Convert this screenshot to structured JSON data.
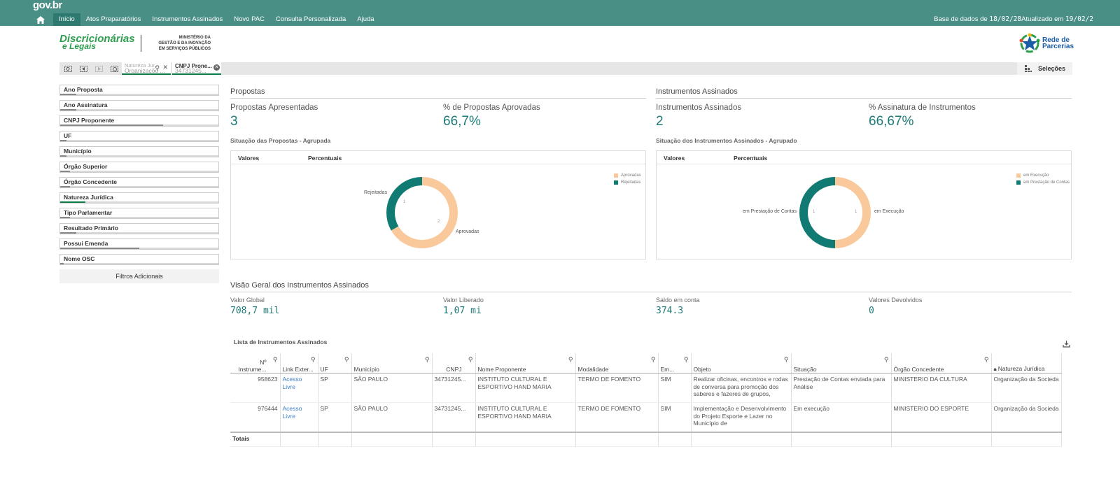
{
  "header": {
    "brand": "gov.br",
    "nav": [
      {
        "label": "Início",
        "active": true
      },
      {
        "label": "Atos Preparatórios"
      },
      {
        "label": "Instrumentos Assinados"
      },
      {
        "label": "Novo PAC"
      },
      {
        "label": "Consulta Personalizada"
      },
      {
        "label": "Ajuda"
      }
    ],
    "db_prefix": "Base de dados de ",
    "db_date": "18/02/28",
    "upd_prefix": "Atualizado em ",
    "upd_date": "19/02/2"
  },
  "logos": {
    "dl_line1": "Discricionárias",
    "dl_line2": "e Legais",
    "ministry_1": "MINISTÉRIO DA",
    "ministry_2": "GESTÃO E DA INOVAÇÃO",
    "ministry_3": "EM SERVIÇOS PÚBLICOS",
    "rede_1": "Rede de",
    "rede_2": "Parcerias"
  },
  "selection_bar": {
    "chip1_title": "Natureza Jur...",
    "chip1_value": "Organizaçõo ...",
    "chip2_title": "CNPJ Prone...",
    "chip2_value": "34731245...",
    "selections_label": "Seleções"
  },
  "filters": [
    {
      "label": "Ano Proposta",
      "fill": 0.1
    },
    {
      "label": "Ano Assinatura",
      "fill": 0.1
    },
    {
      "label": "CNPJ Proponente",
      "fill": 0.65
    },
    {
      "label": "UF",
      "fill": 0.04
    },
    {
      "label": "Município",
      "fill": 0.04
    },
    {
      "label": "Órgão Superior",
      "fill": 0.06
    },
    {
      "label": "Órgão Concedente",
      "fill": 0.06
    },
    {
      "label": "Natureza Jurídica",
      "fill": 0.16
    },
    {
      "label": "Tipo Parlamentar",
      "fill": 0.06
    },
    {
      "label": "Resultado Primário",
      "fill": 0.1
    },
    {
      "label": "Possui Emenda",
      "fill": 0.5
    },
    {
      "label": "Nome OSC",
      "fill": 0.02
    }
  ],
  "filters_more": "Filtros Adicionais",
  "propostas": {
    "section": "Propostas",
    "kpi1_title": "Propostas Apresentadas",
    "kpi1_value": "3",
    "kpi2_title": "% de Propostas Aprovadas",
    "kpi2_value": "66,7%",
    "chart_title": "Situação das Propostas - Agrupada",
    "tab1": "Valores",
    "tab2": "Percentuais",
    "legend": [
      "Aprovadas",
      "Rejeitadas"
    ],
    "label_a": "Aprovadas",
    "label_b": "Rejeitadas",
    "val_a": "2",
    "val_b": "1"
  },
  "instrumentos": {
    "section": "Instrumentos Assinados",
    "kpi1_title": "Instrumentos Assinados",
    "kpi1_value": "2",
    "kpi2_title": "% Assinatura de Instrumentos",
    "kpi2_value": "66,67%",
    "chart_title": "Situação dos Instrumentos Assinados - Agrupado",
    "tab1": "Valores",
    "tab2": "Percentuais",
    "legend": [
      "em Execução",
      "em Prestação de Contas"
    ],
    "label_a": "em Execução",
    "label_b": "em Prestação de Contas",
    "val_a": "1",
    "val_b": "1"
  },
  "chart_data": [
    {
      "type": "pie",
      "title": "Situação das Propostas - Agrupada",
      "categories": [
        "Aprovadas",
        "Rejeitadas"
      ],
      "values": [
        2,
        1
      ],
      "colors": [
        "#f9c99b",
        "#117a72"
      ],
      "legend": "top-right"
    },
    {
      "type": "pie",
      "title": "Situação dos Instrumentos Assinados - Agrupado",
      "categories": [
        "em Execução",
        "em Prestação de Contas"
      ],
      "values": [
        1,
        1
      ],
      "colors": [
        "#f9c99b",
        "#117a72"
      ],
      "legend": "top-right"
    }
  ],
  "overview": {
    "section": "Visão Geral dos Instrumentos Assinados",
    "items": [
      {
        "title": "Valor Global",
        "value": "708,7 mil"
      },
      {
        "title": "Valor Liberado",
        "value": "1,07 mi"
      },
      {
        "title": "Saldo em conta",
        "value": "374.3"
      },
      {
        "title": "Valores Devolvidos",
        "value": "0"
      }
    ]
  },
  "table": {
    "title": "Lista de Instrumentos Assinados",
    "headers": [
      "Nº Instrume...",
      "Link Exter...",
      "UF",
      "Município",
      "CNPJ",
      "Nome Proponente",
      "Modalidade",
      "Em...",
      "Objeto",
      "Situação",
      "Órgão Concedente",
      "Natureza Jurídica"
    ],
    "rows": [
      [
        "958623",
        "Acesso Livre",
        "SP",
        "SÃO PAULO",
        "34731245...",
        "INSTITUTO CULTURAL E ESPORTIVO HAND MARIA",
        "TERMO DE FOMENTO",
        "SIM",
        "Realizar oficinas, encontros e rodas de conversa para promoção dos saberes e fazeres de grupos,",
        "Prestação de Contas enviada para Análise",
        "MINISTERIO DA CULTURA",
        "Organização da Socieda"
      ],
      [
        "976444",
        "Acesso Livre",
        "SP",
        "SÃO PAULO",
        "34731245...",
        "INSTITUTO CULTURAL E ESPORTIVO HAND MARIA",
        "TERMO DE FOMENTO",
        "SIM",
        "Implementação e Desenvolvimento do Projeto Esporte e Lazer no Município de",
        "Em execução",
        "MINISTERIO DO ESPORTE",
        "Organização da Socieda"
      ]
    ],
    "totals_label": "Totais"
  },
  "colors": {
    "topbar": "#4a8f86",
    "accent": "#1d7b77",
    "donut_a": "#f9c99b",
    "donut_b": "#117a72"
  }
}
